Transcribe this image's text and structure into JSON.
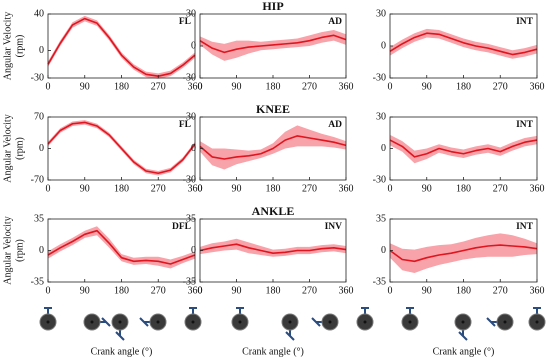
{
  "chart_data": [
    {
      "type": "line",
      "label": "FL",
      "ylabel": [
        "Angular Velocity",
        "(rpm)"
      ],
      "color": "#e0151f",
      "band_color": "#f7a3a9",
      "x": [
        0,
        30,
        60,
        90,
        120,
        150,
        180,
        210,
        240,
        270,
        300,
        330,
        360
      ],
      "values": [
        -15,
        8,
        28,
        35,
        30,
        14,
        -5,
        -18,
        -26,
        -28,
        -25,
        -16,
        -5
      ],
      "band_low": [
        -18,
        5,
        25,
        32,
        27,
        11,
        -8,
        -21,
        -29,
        -31,
        -28,
        -19,
        -8
      ],
      "band_high": [
        -12,
        11,
        31,
        38,
        33,
        17,
        -2,
        -15,
        -23,
        -25,
        -22,
        -13,
        -2
      ],
      "xlim": [
        0,
        360
      ],
      "xticks": [
        0,
        90,
        180,
        270,
        360
      ],
      "ylim": [
        -30,
        40
      ],
      "yticks": [
        -30,
        0,
        40
      ]
    },
    {
      "type": "line",
      "title": "HIP",
      "label": "AD",
      "color": "#e0151f",
      "band_color": "#f7a3a9",
      "x": [
        0,
        30,
        60,
        90,
        120,
        150,
        180,
        210,
        240,
        270,
        300,
        330,
        360
      ],
      "values": [
        5,
        -2,
        -6,
        -3,
        -1,
        0,
        1,
        2,
        3,
        5,
        8,
        10,
        6
      ],
      "band_low": [
        1,
        -8,
        -14,
        -11,
        -7,
        -4,
        -3,
        -2,
        -1,
        0,
        3,
        5,
        1
      ],
      "band_high": [
        9,
        4,
        2,
        5,
        5,
        4,
        5,
        6,
        7,
        10,
        13,
        15,
        11
      ],
      "xlim": [
        0,
        360
      ],
      "xticks": [
        0,
        90,
        180,
        270,
        360
      ],
      "ylim": [
        -30,
        30
      ],
      "yticks": [
        -30,
        0,
        30
      ]
    },
    {
      "type": "line",
      "label": "INT",
      "color": "#e0151f",
      "band_color": "#f7a3a9",
      "x": [
        0,
        30,
        60,
        90,
        120,
        150,
        180,
        210,
        240,
        270,
        300,
        330,
        360
      ],
      "values": [
        -5,
        2,
        8,
        12,
        11,
        7,
        3,
        0,
        -2,
        -5,
        -8,
        -6,
        -3
      ],
      "band_low": [
        -9,
        -2,
        4,
        8,
        7,
        3,
        -1,
        -4,
        -6,
        -9,
        -12,
        -10,
        -7
      ],
      "band_high": [
        -1,
        6,
        12,
        16,
        15,
        11,
        7,
        4,
        2,
        -1,
        -4,
        -2,
        1
      ],
      "xlim": [
        0,
        360
      ],
      "xticks": [
        0,
        90,
        180,
        270,
        360
      ],
      "ylim": [
        -30,
        30
      ],
      "yticks": [
        -30,
        0,
        30
      ]
    },
    {
      "type": "line",
      "label": "FL",
      "ylabel": [
        "Angular Velocity",
        "(rpm)"
      ],
      "color": "#e0151f",
      "band_color": "#f7a3a9",
      "x": [
        0,
        30,
        60,
        90,
        120,
        150,
        180,
        210,
        240,
        270,
        300,
        330,
        360
      ],
      "values": [
        10,
        40,
        55,
        58,
        50,
        30,
        0,
        -30,
        -50,
        -55,
        -48,
        -25,
        10
      ],
      "band_low": [
        5,
        35,
        50,
        53,
        45,
        25,
        -5,
        -35,
        -55,
        -60,
        -53,
        -30,
        5
      ],
      "band_high": [
        15,
        45,
        60,
        63,
        55,
        35,
        5,
        -25,
        -45,
        -50,
        -43,
        -20,
        15
      ],
      "xlim": [
        0,
        360
      ],
      "xticks": [
        0,
        90,
        180,
        270,
        360
      ],
      "ylim": [
        -70,
        70
      ],
      "yticks": [
        -70,
        0,
        70
      ]
    },
    {
      "type": "line",
      "title": "KNEE",
      "label": "AD",
      "color": "#e0151f",
      "band_color": "#f7a3a9",
      "x": [
        0,
        30,
        60,
        90,
        120,
        150,
        180,
        210,
        240,
        270,
        300,
        330,
        360
      ],
      "values": [
        2,
        -8,
        -10,
        -8,
        -7,
        -5,
        0,
        8,
        12,
        10,
        8,
        6,
        3
      ],
      "band_low": [
        -3,
        -16,
        -20,
        -15,
        -12,
        -9,
        -5,
        0,
        2,
        2,
        2,
        1,
        -1
      ],
      "band_high": [
        7,
        0,
        0,
        -1,
        -2,
        -1,
        5,
        16,
        22,
        18,
        14,
        11,
        7
      ],
      "xlim": [
        0,
        360
      ],
      "xticks": [
        0,
        90,
        180,
        270,
        360
      ],
      "ylim": [
        -30,
        30
      ],
      "yticks": [
        -30,
        0,
        30
      ]
    },
    {
      "type": "line",
      "label": "INT",
      "color": "#e0151f",
      "band_color": "#f7a3a9",
      "x": [
        0,
        30,
        60,
        90,
        120,
        150,
        180,
        210,
        240,
        270,
        300,
        330,
        360
      ],
      "values": [
        8,
        2,
        -8,
        -5,
        0,
        -3,
        -5,
        -2,
        0,
        -3,
        2,
        6,
        8
      ],
      "band_low": [
        3,
        -3,
        -14,
        -10,
        -4,
        -7,
        -9,
        -6,
        -4,
        -7,
        -2,
        2,
        4
      ],
      "band_high": [
        13,
        7,
        -2,
        0,
        4,
        1,
        -1,
        2,
        4,
        1,
        6,
        10,
        12
      ],
      "xlim": [
        0,
        360
      ],
      "xticks": [
        0,
        90,
        180,
        270,
        360
      ],
      "ylim": [
        -30,
        30
      ],
      "yticks": [
        -30,
        0,
        30
      ]
    },
    {
      "type": "line",
      "label": "DFL",
      "ylabel": [
        "Angular Velocity",
        "(rpm)"
      ],
      "xlabel": "Crank angle (°)",
      "color": "#e0151f",
      "band_color": "#f7a3a9",
      "x": [
        0,
        30,
        60,
        90,
        120,
        150,
        180,
        210,
        240,
        270,
        300,
        330,
        360
      ],
      "values": [
        -5,
        3,
        10,
        18,
        22,
        8,
        -8,
        -12,
        -11,
        -12,
        -15,
        -10,
        -5
      ],
      "band_low": [
        -9,
        -1,
        6,
        14,
        17,
        3,
        -12,
        -16,
        -15,
        -17,
        -20,
        -14,
        -9
      ],
      "band_high": [
        -1,
        7,
        14,
        22,
        27,
        13,
        -4,
        -8,
        -7,
        -7,
        -10,
        -6,
        -1
      ],
      "xlim": [
        0,
        360
      ],
      "xticks": [
        0,
        90,
        180,
        270,
        360
      ],
      "ylim": [
        -35,
        35
      ],
      "yticks": [
        -35,
        0,
        35
      ]
    },
    {
      "type": "line",
      "title": "ANKLE",
      "label": "INV",
      "xlabel": "Crank angle (°)",
      "color": "#e0151f",
      "band_color": "#f7a3a9",
      "x": [
        0,
        30,
        60,
        90,
        120,
        150,
        180,
        210,
        240,
        270,
        300,
        330,
        360
      ],
      "values": [
        0,
        3,
        5,
        7,
        3,
        0,
        -3,
        -2,
        0,
        0,
        2,
        3,
        1
      ],
      "band_low": [
        -4,
        -2,
        0,
        1,
        -3,
        -5,
        -7,
        -6,
        -4,
        -4,
        -2,
        -1,
        -3
      ],
      "band_high": [
        4,
        8,
        10,
        13,
        9,
        5,
        1,
        2,
        4,
        4,
        6,
        7,
        5
      ],
      "xlim": [
        0,
        360
      ],
      "xticks": [
        0,
        90,
        180,
        270,
        360
      ],
      "ylim": [
        -35,
        35
      ],
      "yticks": [
        -35,
        0,
        35
      ]
    },
    {
      "type": "line",
      "label": "INT",
      "xlabel": "Crank angle (°)",
      "color": "#e0151f",
      "band_color": "#f7a3a9",
      "x": [
        0,
        30,
        60,
        90,
        120,
        150,
        180,
        210,
        240,
        270,
        300,
        330,
        360
      ],
      "values": [
        0,
        -10,
        -12,
        -8,
        -5,
        -3,
        0,
        3,
        5,
        6,
        5,
        4,
        2
      ],
      "band_low": [
        -8,
        -22,
        -25,
        -20,
        -16,
        -13,
        -10,
        -8,
        -7,
        -7,
        -7,
        -5,
        -4
      ],
      "band_high": [
        8,
        2,
        1,
        4,
        6,
        7,
        10,
        14,
        17,
        19,
        17,
        13,
        8
      ],
      "xlim": [
        0,
        360
      ],
      "xticks": [
        0,
        90,
        180,
        270,
        360
      ],
      "ylim": [
        -35,
        35
      ],
      "yticks": [
        -35,
        0,
        35
      ]
    }
  ]
}
